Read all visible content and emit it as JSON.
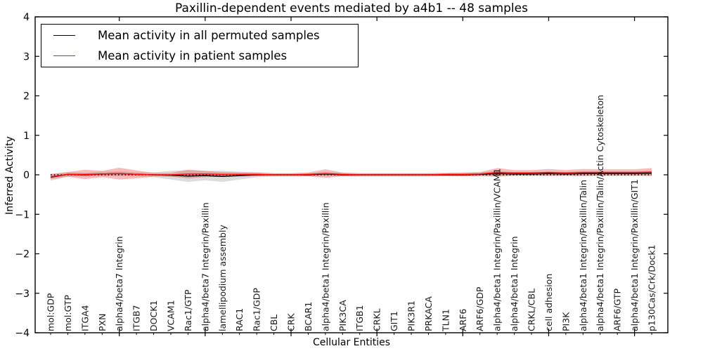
{
  "title": "Paxillin-dependent events mediated by a4b1 -- 48 samples",
  "axes": {
    "xlabel": "Cellular Entities",
    "ylabel": "Inferred Activity"
  },
  "legend": [
    {
      "label": "Mean activity in all permuted samples",
      "color": "#000000"
    },
    {
      "label": "Mean activity in patient samples",
      "color": "#ff1212"
    }
  ],
  "chart_data": {
    "type": "line",
    "title": "Paxillin-dependent events mediated by a4b1 -- 48 samples",
    "xlabel": "Cellular Entities",
    "ylabel": "Inferred Activity",
    "ylim": [
      -4,
      4
    ],
    "yticks": [
      4,
      3,
      2,
      1,
      0,
      -1,
      -2,
      -3,
      -4
    ],
    "x_major_tick_positions": [
      5,
      10,
      15,
      20,
      25,
      30,
      35
    ],
    "grid": false,
    "legend_position": "upper left",
    "zero_line": true,
    "zero_line_style": "dotted",
    "categories": [
      "mol:GDP",
      "mol:GTP",
      "ITGA4",
      "PXN",
      "alpha4/beta7 Integrin",
      "ITGB7",
      "DOCK1",
      "VCAM1",
      "Rac1/GTP",
      "alpha4/beta7 Integrin/Paxillin",
      "lamellipodium assembly",
      "RAC1",
      "Rac1/GDP",
      "CBL",
      "CRK",
      "BCAR1",
      "alpha4/beta1 Integrin/Paxillin",
      "PIK3CA",
      "ITGB1",
      "CRKL",
      "GIT1",
      "PIK3R1",
      "PRKACA",
      "TLN1",
      "ARF6",
      "ARF6/GDP",
      "alpha4/beta1 Integrin/Paxillin/VCAM1",
      "alpha4/beta1 Integrin",
      "CRKL/CBL",
      "cell adhesion",
      "PI3K",
      "alpha4/beta1 Integrin/Paxillin/Talin",
      "alpha4/beta1 Integrin/Paxillin/Talin/Actin Cytoskeleton",
      "ARF6/GTP",
      "alpha4/beta1 Integrin/Paxillin/GIT1",
      "p130Cas/Crk/Dock1"
    ],
    "series": [
      {
        "name": "Mean activity in all permuted samples",
        "color": "#000000",
        "band_color": "#8c8c8c",
        "band_opacity": 0.3,
        "values": [
          -0.06,
          0.01,
          0.0,
          0.02,
          0.03,
          0.01,
          0.0,
          -0.01,
          -0.03,
          -0.02,
          -0.04,
          -0.02,
          0.0,
          0.0,
          0.0,
          0.0,
          0.02,
          0.0,
          0.0,
          0.0,
          0.0,
          0.0,
          0.0,
          0.0,
          0.0,
          0.01,
          0.03,
          0.02,
          0.02,
          0.03,
          0.02,
          0.03,
          0.03,
          0.03,
          0.03,
          0.04
        ],
        "band_halfwidth": [
          0.09,
          0.06,
          0.05,
          0.06,
          0.06,
          0.05,
          0.06,
          0.11,
          0.15,
          0.12,
          0.14,
          0.1,
          0.06,
          0.04,
          0.04,
          0.04,
          0.06,
          0.04,
          0.04,
          0.04,
          0.04,
          0.04,
          0.04,
          0.04,
          0.04,
          0.05,
          0.06,
          0.05,
          0.05,
          0.05,
          0.05,
          0.06,
          0.06,
          0.06,
          0.06,
          0.06
        ]
      },
      {
        "name": "Mean activity in patient samples",
        "color": "#ff1212",
        "band_color": "#f05050",
        "band_opacity": 0.38,
        "values": [
          -0.05,
          0.01,
          0.01,
          0.02,
          0.03,
          0.01,
          0.0,
          0.0,
          0.02,
          0.02,
          0.01,
          0.01,
          0.01,
          0.0,
          0.0,
          0.01,
          0.03,
          0.01,
          0.0,
          0.0,
          0.0,
          0.0,
          0.0,
          0.01,
          0.01,
          0.02,
          0.06,
          0.05,
          0.05,
          0.06,
          0.05,
          0.06,
          0.06,
          0.06,
          0.06,
          0.07
        ],
        "band_halfwidth": [
          0.06,
          0.06,
          0.12,
          0.08,
          0.15,
          0.1,
          0.05,
          0.05,
          0.11,
          0.08,
          0.06,
          0.05,
          0.05,
          0.04,
          0.04,
          0.05,
          0.11,
          0.05,
          0.04,
          0.04,
          0.04,
          0.04,
          0.04,
          0.04,
          0.05,
          0.05,
          0.11,
          0.07,
          0.07,
          0.09,
          0.07,
          0.09,
          0.08,
          0.08,
          0.08,
          0.1
        ]
      }
    ]
  }
}
